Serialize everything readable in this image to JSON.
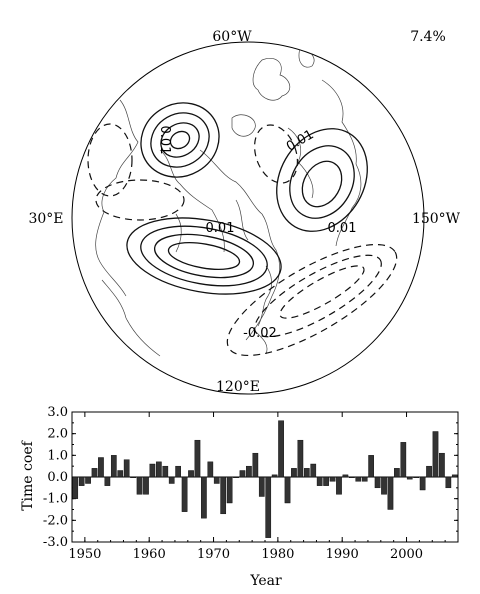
{
  "map": {
    "variance": "7.4%",
    "lon_top": "60°W",
    "lon_left": "30°E",
    "lon_right": "150°W",
    "lon_bottom": "120°E",
    "contour_labels": [
      "0.01",
      "0.01",
      "0.01",
      "0.01",
      "-0.02"
    ]
  },
  "chart_data": {
    "type": "bar",
    "title": "",
    "xlabel": "Year",
    "ylabel": "Time coef",
    "xlim": [
      1948,
      2008
    ],
    "ylim": [
      -3.0,
      3.0
    ],
    "xticks": [
      "1950",
      "1960",
      "1970",
      "1980",
      "1990",
      "2000"
    ],
    "xtick_values": [
      1950,
      1960,
      1970,
      1980,
      1990,
      2000
    ],
    "yticks": [
      "3.0",
      "2.0",
      "1.0",
      "0.0",
      "-1.0",
      "-2.0",
      "-3.0"
    ],
    "ytick_values": [
      3,
      2,
      1,
      0,
      -1,
      -2,
      -3
    ],
    "grid": false,
    "bar_color": "#333333",
    "x": [
      1948,
      1949,
      1950,
      1951,
      1952,
      1953,
      1954,
      1955,
      1956,
      1957,
      1958,
      1959,
      1960,
      1961,
      1962,
      1963,
      1964,
      1965,
      1966,
      1967,
      1968,
      1969,
      1970,
      1971,
      1972,
      1973,
      1974,
      1975,
      1976,
      1977,
      1978,
      1979,
      1980,
      1981,
      1982,
      1983,
      1984,
      1985,
      1986,
      1987,
      1988,
      1989,
      1990,
      1991,
      1992,
      1993,
      1994,
      1995,
      1996,
      1997,
      1998,
      1999,
      2000,
      2001,
      2002,
      2003,
      2004,
      2005,
      2006,
      2007
    ],
    "values": [
      -1.0,
      -0.4,
      -0.3,
      0.4,
      0.9,
      -0.4,
      1.0,
      0.3,
      0.8,
      0.0,
      -0.8,
      -0.8,
      0.6,
      0.7,
      0.5,
      -0.3,
      0.5,
      -1.6,
      0.3,
      1.7,
      -1.9,
      0.7,
      -0.3,
      -1.7,
      -1.2,
      0.0,
      0.3,
      0.5,
      1.1,
      -0.9,
      -2.8,
      0.1,
      2.6,
      -1.2,
      0.4,
      1.7,
      0.4,
      0.6,
      -0.4,
      -0.4,
      -0.2,
      -0.8,
      0.1,
      0.0,
      -0.2,
      -0.2,
      1.0,
      -0.5,
      -0.8,
      -1.5,
      0.4,
      1.6,
      -0.1,
      0.0,
      -0.6,
      0.5,
      2.1,
      1.1,
      -0.5,
      0.1
    ]
  }
}
